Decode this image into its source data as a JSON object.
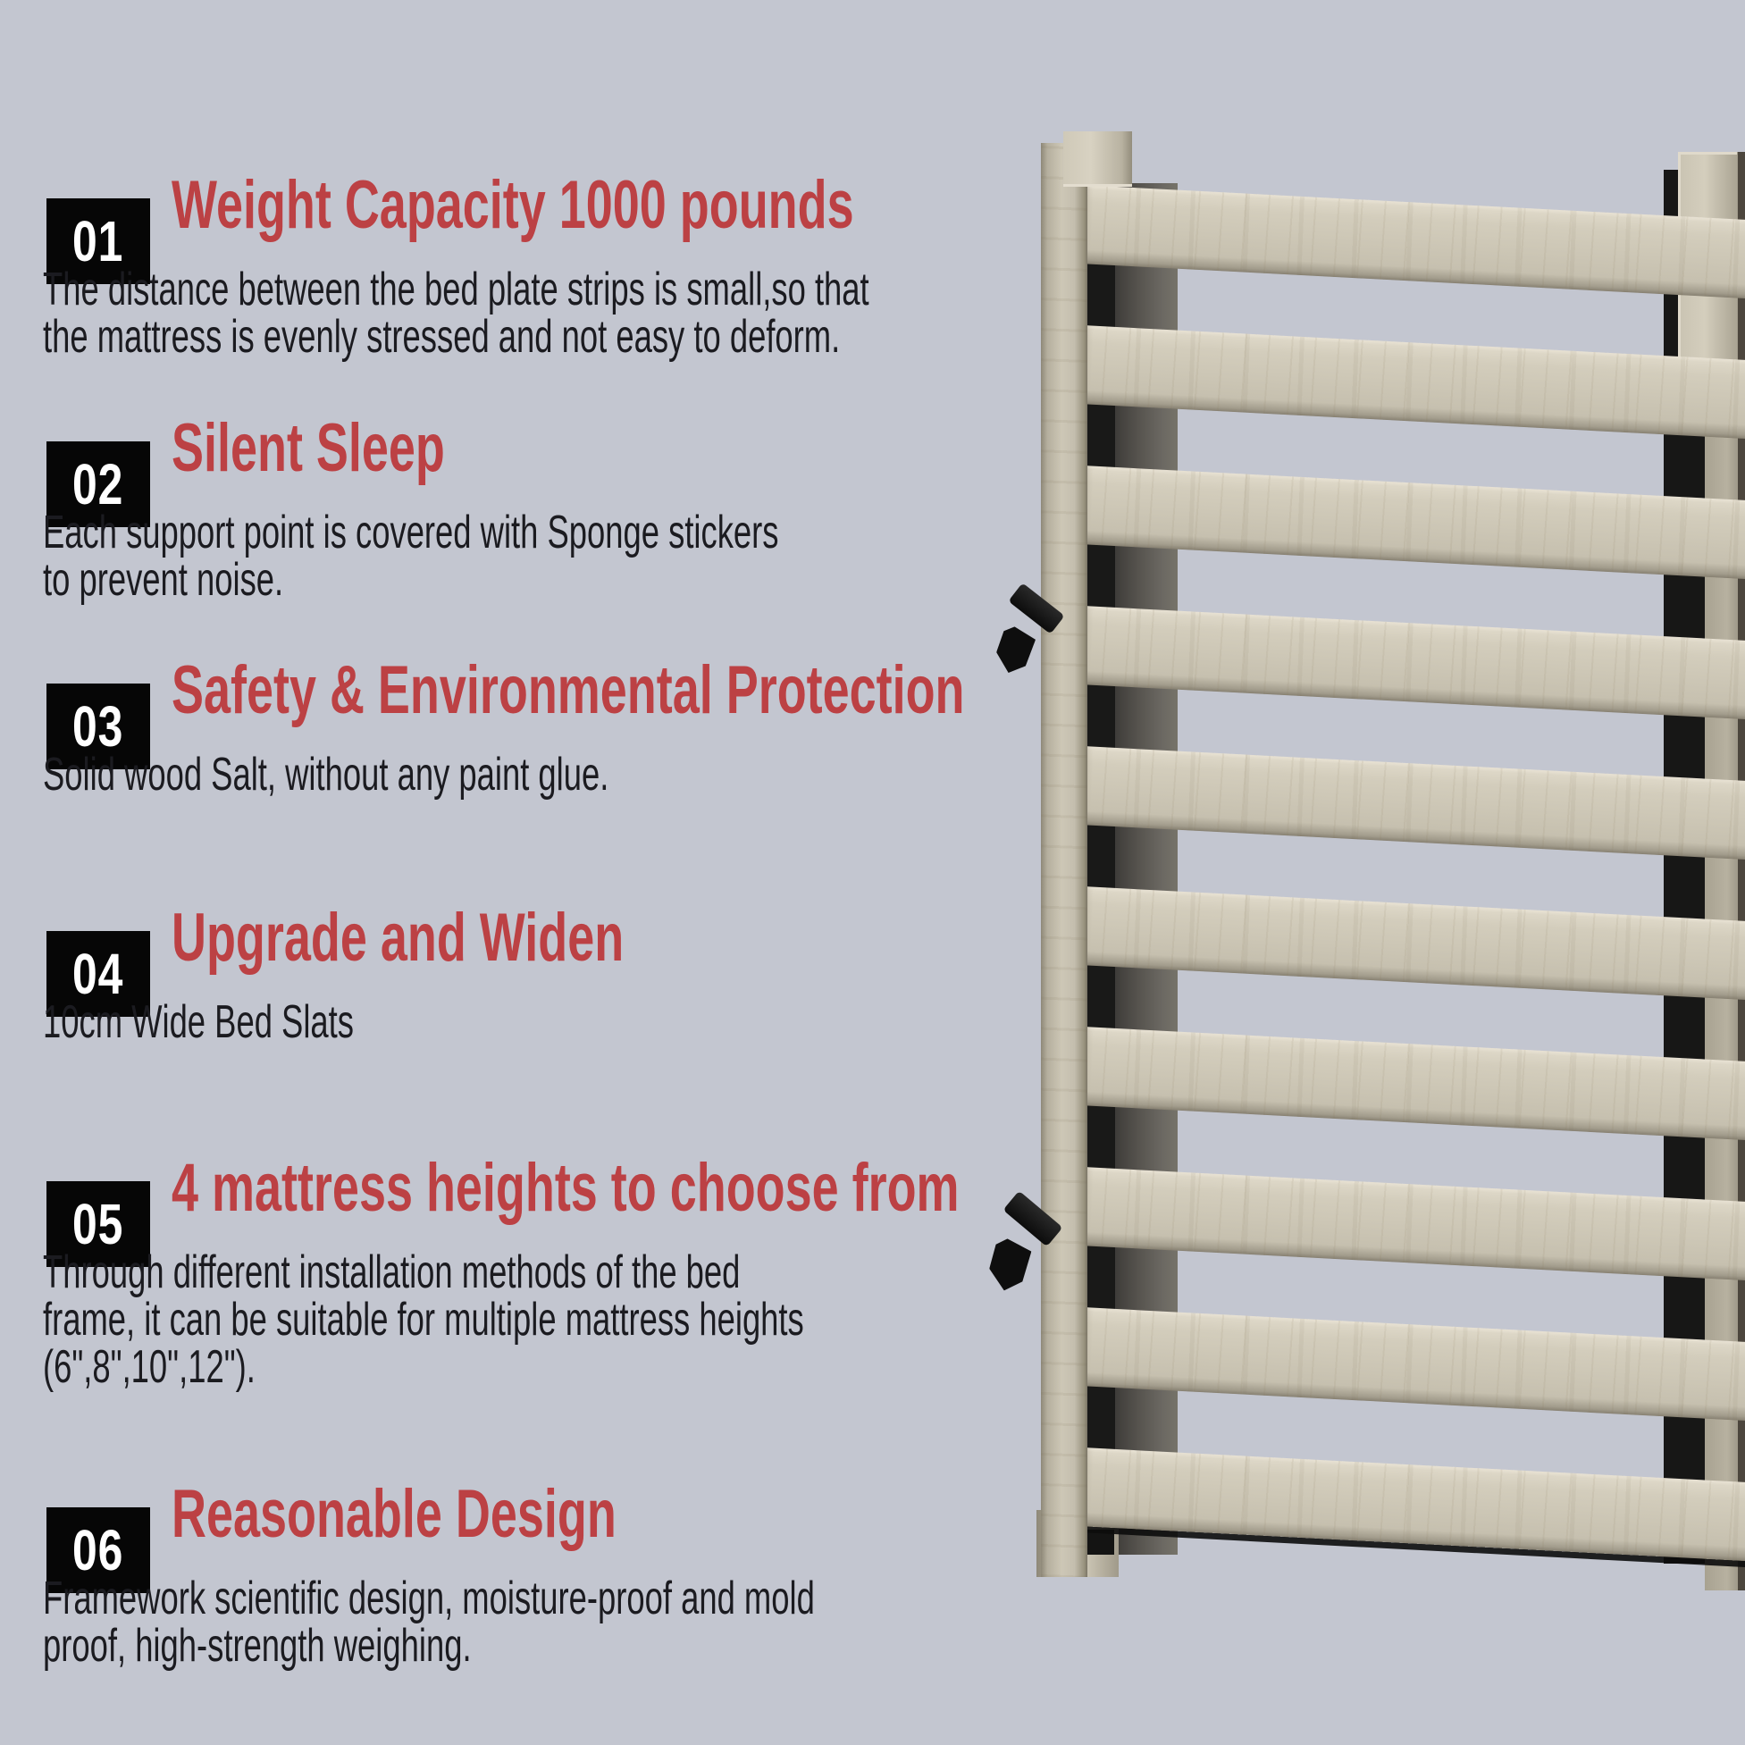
{
  "page": {
    "background": "#c3c6d0"
  },
  "colors": {
    "page_bg": "#c3c6d0",
    "heading_red": "#bc4144",
    "badge_bg": "#060606",
    "badge_fg": "#ffffff",
    "body_ink": "#1b1b20",
    "wood_light": "#d3cdbc",
    "metal_black": "#191918"
  },
  "features": [
    {
      "number": "01",
      "title": "Weight Capacity 1000 pounds",
      "description": "The distance between the bed plate strips is small,so that\nthe mattress is evenly stressed and not easy to deform."
    },
    {
      "number": "02",
      "title": "Silent Sleep",
      "description": "Each support point is covered with Sponge stickers\nto prevent noise."
    },
    {
      "number": "03",
      "title": "Safety & Environmental Protection",
      "description": "Solid wood Salt, without any paint glue."
    },
    {
      "number": "04",
      "title": "Upgrade and Widen",
      "description": "10cm Wide Bed Slats"
    },
    {
      "number": "05",
      "title": "4 mattress heights to choose from",
      "description": "Through different installation methods of the bed\nframe, it can be suitable for multiple mattress heights\n(6\",8\",10\",12\")."
    },
    {
      "number": "06",
      "title": "Reasonable Design",
      "description": "Framework scientific design, moisture-proof and mold\nproof, high-strength weighing."
    }
  ],
  "product": {
    "name": "wooden bed slats on black metal frame",
    "slat_count": 10,
    "hook_count": 2
  }
}
